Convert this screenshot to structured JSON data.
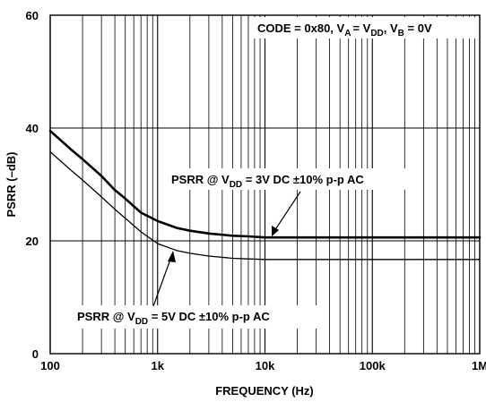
{
  "chart_data": {
    "type": "line",
    "x_scale": "log",
    "xlim": [
      100,
      1000000
    ],
    "ylim": [
      0,
      60
    ],
    "xlabel": "FREQUENCY (Hz)",
    "ylabel": "PSRR (–dB)",
    "x_ticks": [
      "100",
      "1k",
      "10k",
      "100k",
      "1M"
    ],
    "y_ticks": [
      "0",
      "20",
      "40",
      "60"
    ],
    "grid": true,
    "conditions": {
      "prefix": "CODE = 0x80, V",
      "va_sub": "A",
      "mid1": "= V",
      "vdd_sub": "DD",
      "mid2": ", V",
      "vb_sub": "B",
      "suffix": " = 0V"
    },
    "series": [
      {
        "name": "PSRR @ VDD = 3V DC ±10% p-p AC",
        "label": {
          "prefix": "PSRR @ V",
          "sub": "DD",
          "suffix": " = 3V DC ±10% p-p AC"
        },
        "style": "thick",
        "x": [
          100,
          150,
          200,
          300,
          400,
          500,
          700,
          1000,
          1500,
          2000,
          3000,
          5000,
          7000,
          10000,
          20000,
          100000,
          1000000
        ],
        "y": [
          39.5,
          36.5,
          34.5,
          31.5,
          29.0,
          27.5,
          25.0,
          23.5,
          22.3,
          21.8,
          21.3,
          20.9,
          20.8,
          20.6,
          20.6,
          20.6,
          20.6
        ]
      },
      {
        "name": "PSRR @ VDD = 5V DC ±10% p-p AC",
        "label": {
          "prefix": "PSRR @ V",
          "sub": "DD",
          "suffix": " = 5V DC ±10% p-p AC"
        },
        "style": "thin",
        "x": [
          100,
          150,
          200,
          300,
          400,
          500,
          700,
          1000,
          1500,
          2000,
          3000,
          5000,
          7000,
          10000,
          100000,
          1000000
        ],
        "y": [
          35.8,
          32.8,
          30.8,
          27.8,
          25.6,
          24.0,
          21.6,
          19.5,
          18.3,
          17.8,
          17.3,
          16.9,
          16.8,
          16.7,
          16.7,
          16.7
        ]
      }
    ]
  }
}
